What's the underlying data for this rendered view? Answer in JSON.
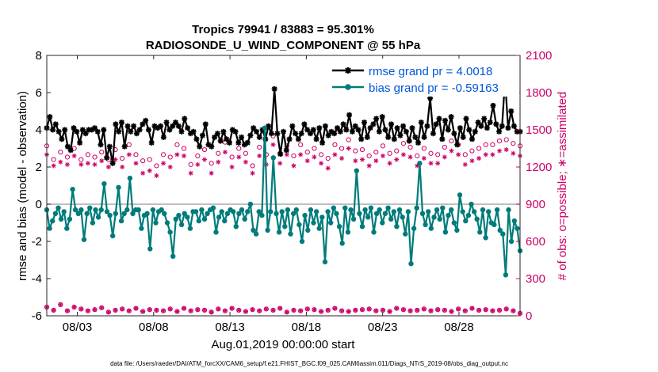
{
  "chart_data": {
    "type": "line",
    "title": "Tropics 79941 / 83883 = 95.301%",
    "subtitle": "RADIOSONDE_U_WIND_COMPONENT @ 55 hPa",
    "xlabel": "Aug.01,2019 00:00:00 start",
    "ylabel": "rmse and bias (model - observation)",
    "y2label": "# of obs: o=possible; ∗=assimilated",
    "xlim": [
      1,
      32
    ],
    "ylim": [
      -6,
      8
    ],
    "y2lim": [
      0,
      2100
    ],
    "xticks": [
      3,
      8,
      13,
      18,
      23,
      28
    ],
    "xtick_labels": [
      "08/03",
      "08/08",
      "08/13",
      "08/18",
      "08/23",
      "08/28"
    ],
    "yticks": [
      -6,
      -4,
      -2,
      0,
      2,
      4,
      6,
      8
    ],
    "ytick_labels": [
      "-6",
      "-4",
      "-2",
      "0",
      "2",
      "4",
      "6",
      "8"
    ],
    "y2ticks": [
      0,
      300,
      600,
      900,
      1200,
      1500,
      1800,
      2100
    ],
    "y2tick_labels": [
      "0",
      "300",
      "600",
      "900",
      "1200",
      "1500",
      "1800",
      "2100"
    ],
    "zero_line": 0,
    "colors": {
      "rmse": "#000000",
      "bias": "#007b7b",
      "obs": "#cc0066",
      "legend_text": "#0057d9",
      "zero": "#aaaaaa"
    },
    "series": [
      {
        "name": "rmse grand pr = 4.0018",
        "axis": "left",
        "values": [
          4.1,
          4.7,
          4.0,
          4.3,
          3.9,
          3.5,
          4.0,
          3.1,
          2.9,
          4.1,
          3.9,
          3.3,
          4.0,
          3.8,
          4.0,
          4.0,
          4.1,
          3.9,
          3.2,
          4.0,
          2.5,
          3.1,
          2.2,
          4.3,
          3.9,
          4.4,
          3.1,
          4.2,
          3.9,
          4.2,
          3.8,
          4.0,
          4.3,
          4.5,
          4.0,
          3.3,
          4.2,
          4.1,
          4.2,
          3.6,
          4.4,
          4.0,
          4.2,
          4.4,
          4.2,
          3.9,
          4.6,
          4.1,
          3.8,
          3.9,
          3.5,
          3.1,
          3.7,
          4.3,
          3.2,
          3.1,
          3.6,
          3.8,
          3.4,
          3.9,
          3.5,
          3.3,
          4.0,
          3.9,
          3.3,
          3.6,
          3.2,
          3.3,
          3.7,
          4.1,
          3.9,
          3.6,
          4.0,
          3.5,
          4.2,
          3.8,
          6.2,
          3.8,
          2.7,
          3.9,
          2.9,
          3.5,
          4.2,
          3.8,
          3.5,
          3.8,
          4.3,
          4.0,
          3.8,
          4.0,
          3.5,
          4.1,
          3.3,
          4.2,
          3.7,
          3.9,
          3.8,
          4.1,
          3.9,
          4.3,
          4.0,
          4.8,
          3.9,
          4.2,
          4.0,
          3.5,
          4.4,
          3.6,
          4.1,
          4.3,
          4.6,
          3.9,
          4.7,
          4.0,
          3.6,
          4.3,
          3.5,
          4.1,
          3.7,
          4.2,
          3.9,
          3.4,
          4.1,
          3.6,
          3.3,
          4.4,
          3.6,
          4.2,
          5.7,
          3.8,
          4.3,
          4.6,
          3.5,
          4.5,
          4.0,
          4.7,
          3.8,
          3.2,
          4.1,
          3.6,
          4.6,
          4.0,
          3.5,
          3.9,
          4.4,
          4.2,
          4.6,
          4.1,
          4.4,
          5.3,
          4.3,
          3.9,
          4.2,
          6.7,
          4.1,
          5.0,
          4.2,
          3.9,
          3.9
        ]
      },
      {
        "name": "bias grand pr = -0.59163",
        "axis": "left",
        "values": [
          -0.3,
          -1.3,
          -0.9,
          -0.5,
          -0.2,
          -0.8,
          -0.4,
          -1.3,
          -0.8,
          0.8,
          -0.3,
          -0.5,
          -0.3,
          -1.9,
          -0.5,
          -0.2,
          -1.0,
          -0.3,
          -0.7,
          -0.3,
          1.1,
          -0.4,
          -0.6,
          -1.7,
          -0.5,
          0.9,
          -0.9,
          -0.5,
          -0.3,
          1.4,
          -0.5,
          -0.3,
          -0.3,
          -1.3,
          -0.6,
          -0.5,
          -2.4,
          -0.3,
          -1.0,
          -0.4,
          -0.3,
          -0.5,
          -1.0,
          -1.5,
          -2.8,
          -0.8,
          -0.6,
          -1.1,
          -0.5,
          -0.7,
          -1.3,
          -0.4,
          -0.4,
          -0.9,
          -0.3,
          -0.8,
          -0.5,
          -0.3,
          -0.2,
          -1.5,
          -0.7,
          -0.4,
          -0.9,
          -0.5,
          -0.3,
          -0.4,
          -1.2,
          -0.5,
          -0.3,
          -0.8,
          -0.4,
          0.0,
          -1.4,
          -1.6,
          -0.4,
          -0.6,
          4.1,
          -1.4,
          -0.4,
          2.5,
          -0.5,
          -1.5,
          -0.4,
          -1.2,
          -0.3,
          -1.6,
          -0.5,
          -0.3,
          -1.1,
          -2.0,
          -0.6,
          -1.4,
          -0.3,
          -1.0,
          -0.4,
          -1.3,
          -0.7,
          -3.1,
          -0.4,
          -1.0,
          -0.2,
          -0.5,
          -1.2,
          -2.1,
          -0.2,
          -1.5,
          -0.3,
          -0.8,
          1.8,
          -0.5,
          -1.2,
          -0.3,
          -0.7,
          -0.2,
          -1.5,
          -0.5,
          -0.3,
          -1.0,
          -0.5,
          -0.2,
          -0.8,
          -0.4,
          -1.2,
          -0.3,
          -0.7,
          -1.6,
          -0.4,
          -3.2,
          -1.3,
          -0.2,
          2.2,
          -0.5,
          -1.1,
          -0.4,
          -1.3,
          -0.7,
          -0.3,
          -0.8,
          -0.2,
          -1.5,
          -0.6,
          -0.3,
          -1.0,
          -1.4,
          0.5,
          -0.4,
          -0.9,
          -0.6,
          0.0,
          -0.4,
          -0.8,
          -1.5,
          -0.3,
          -1.8,
          -0.4,
          -1.0,
          -1.1,
          -0.3,
          -1.4,
          -1.6,
          -3.8,
          -0.3,
          -2.0,
          -0.9,
          -1.3,
          -2.5
        ]
      }
    ],
    "obs_possible": [
      1370,
      1260,
      1320,
      1280,
      1350,
      1260,
      1300,
      1280,
      1320,
      1260,
      1340,
      1270,
      1380,
      1300,
      1250,
      1260,
      1210,
      1300,
      1280,
      1380,
      1350,
      1220,
      1290,
      1340,
      1230,
      1310,
      1400,
      1280,
      1350,
      1310,
      1210,
      1360,
      1300,
      1450,
      1310,
      1370,
      1290,
      1380,
      1320,
      1350,
      1300,
      1270,
      1380,
      1350,
      1420,
      1330,
      1340,
      1290,
      1320,
      1370,
      1310,
      1330,
      1390,
      1360,
      1290,
      1350,
      1310,
      1300,
      1360,
      1410,
      1380,
      1300,
      1330,
      1350,
      1380,
      1380,
      1410,
      1420,
      1390,
      1370
    ],
    "obs_assimilated": [
      1300,
      1210,
      1240,
      1220,
      1290,
      1220,
      1230,
      1220,
      1250,
      1200,
      1260,
      1200,
      1300,
      1230,
      1150,
      1170,
      1130,
      1230,
      1200,
      1300,
      1290,
      1150,
      1220,
      1260,
      1150,
      1240,
      1320,
      1200,
      1280,
      1240,
      1150,
      1290,
      1220,
      1380,
      1230,
      1300,
      1210,
      1300,
      1250,
      1280,
      1230,
      1190,
      1300,
      1270,
      1350,
      1250,
      1260,
      1210,
      1250,
      1290,
      1230,
      1260,
      1300,
      1280,
      1210,
      1270,
      1230,
      1230,
      1280,
      1330,
      1300,
      1220,
      1250,
      1270,
      1300,
      1300,
      1330,
      1340,
      1310,
      1290
    ],
    "obs_bottom_possible": [
      70,
      45,
      90,
      40,
      70,
      55,
      40,
      50,
      65,
      30,
      45,
      55,
      40,
      60,
      35,
      50,
      45,
      40,
      55,
      35,
      60,
      40,
      50,
      45,
      30,
      55,
      40,
      60,
      45,
      35,
      50,
      40,
      55,
      45,
      60,
      30,
      45,
      40,
      55,
      50,
      35,
      45,
      60,
      40,
      35,
      45,
      50,
      55,
      40,
      45,
      35,
      60,
      50,
      40,
      45,
      55,
      40,
      50,
      45,
      35,
      55,
      40,
      60,
      45,
      50,
      40,
      45,
      55,
      40,
      20
    ],
    "legend": [
      {
        "label": "rmse grand pr = 4.0018",
        "style": "rmse"
      },
      {
        "label": "bias grand pr = -0.59163",
        "style": "bias"
      }
    ],
    "legend_position": "top-right",
    "footer": "data file: /Users/raeder/DAI/ATM_forcXX/CAM6_setup/f.e21.FHIST_BGC.f09_025.CAM6assim.011/Diags_NTrS_2019-08/obs_diag_output.nc"
  }
}
